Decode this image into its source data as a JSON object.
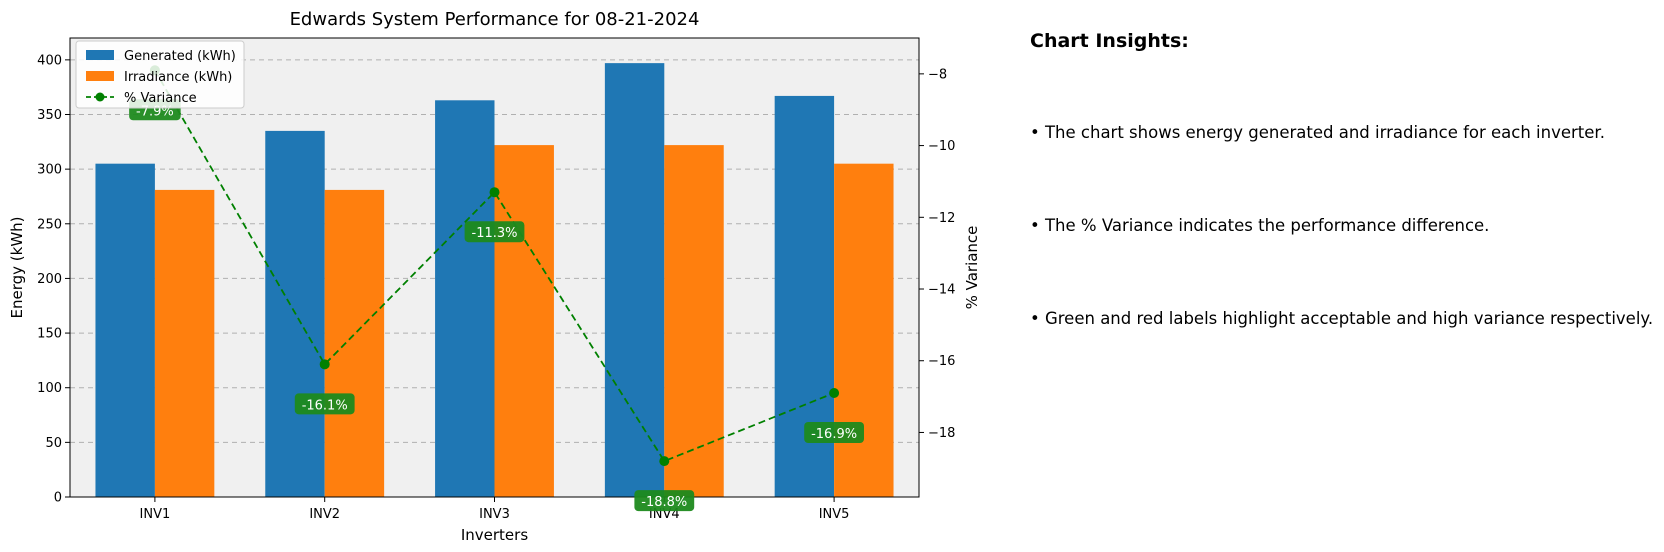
{
  "chart_data": {
    "type": "bar",
    "title": "Edwards System Performance for 08-21-2024",
    "xlabel": "Inverters",
    "ylabel": "Energy (kWh)",
    "y2label": "% Variance",
    "categories": [
      "INV1",
      "INV2",
      "INV3",
      "INV4",
      "INV5"
    ],
    "series": [
      {
        "name": "Generated (kWh)",
        "type": "bar",
        "color": "#1f77b4",
        "values": [
          305,
          335,
          363,
          397,
          367
        ]
      },
      {
        "name": "Irradiance (kWh)",
        "type": "bar",
        "color": "#ff7f0e",
        "values": [
          281,
          281,
          322,
          322,
          305
        ]
      },
      {
        "name": "% Variance",
        "type": "line",
        "axis": "right",
        "color": "#008000",
        "style": "dashed",
        "marker": "circle",
        "values": [
          -7.9,
          -16.1,
          -11.3,
          -18.8,
          -16.9
        ],
        "labels": [
          "-7.9%",
          "-16.1%",
          "-11.3%",
          "-18.8%",
          "-16.9%"
        ]
      }
    ],
    "ylim": [
      0,
      420
    ],
    "y_ticks": [
      0,
      50,
      100,
      150,
      200,
      250,
      300,
      350,
      400
    ],
    "y2lim": [
      -19.8,
      -7.0
    ],
    "y2_ticks": [
      -8,
      -10,
      -12,
      -14,
      -16,
      -18
    ],
    "y2_tick_labels": [
      "−8",
      "−10",
      "−12",
      "−14",
      "−16",
      "−18"
    ],
    "grid": "horizontal dashed",
    "legend": "top-left",
    "background": "#f0f0f0"
  },
  "insights": {
    "heading": "Chart Insights:",
    "items": [
      "• The chart shows energy generated and irradiance for each inverter.",
      "• The % Variance indicates the performance difference.",
      "• Green and red labels highlight acceptable and high variance respectively."
    ]
  }
}
